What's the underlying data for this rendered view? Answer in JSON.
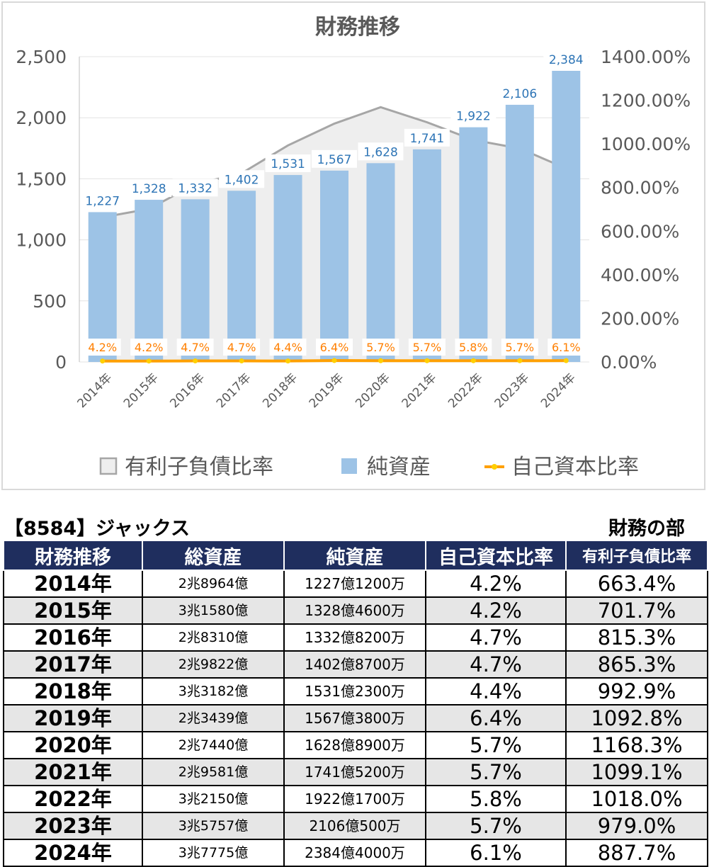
{
  "chart_data": {
    "type": "bar",
    "title": "財務推移",
    "categories": [
      "2014年",
      "2015年",
      "2016年",
      "2017年",
      "2018年",
      "2019年",
      "2020年",
      "2021年",
      "2022年",
      "2023年",
      "2024年"
    ],
    "series": [
      {
        "name": "有利子負債比率",
        "type": "area",
        "axis": "right",
        "values": [
          663.4,
          701.7,
          815.3,
          865.3,
          992.9,
          1092.8,
          1168.3,
          1099.1,
          1018.0,
          979.0,
          887.7
        ]
      },
      {
        "name": "純資産",
        "type": "bar",
        "axis": "left",
        "values": [
          1227,
          1328,
          1332,
          1402,
          1531,
          1567,
          1628,
          1741,
          1922,
          2106,
          2384
        ],
        "labels": [
          "1,227",
          "1,328",
          "1,332",
          "1,402",
          "1,531",
          "1,567",
          "1,628",
          "1,741",
          "1,922",
          "2,106",
          "2,384"
        ]
      },
      {
        "name": "自己資本比率",
        "type": "line",
        "axis": "right",
        "values": [
          4.2,
          4.2,
          4.7,
          4.7,
          4.4,
          6.4,
          5.7,
          5.7,
          5.8,
          5.7,
          6.1
        ],
        "labels": [
          "4.2%",
          "4.2%",
          "4.7%",
          "4.7%",
          "4.4%",
          "6.4%",
          "5.7%",
          "5.7%",
          "5.8%",
          "5.7%",
          "6.1%"
        ]
      }
    ],
    "y_left": {
      "lim": [
        0,
        2500
      ],
      "ticks": [
        0,
        500,
        1000,
        1500,
        2000,
        2500
      ],
      "tick_labels": [
        "0",
        "500",
        "1,000",
        "1,500",
        "2,000",
        "2,500"
      ]
    },
    "y_right": {
      "lim": [
        0,
        1400
      ],
      "ticks": [
        0,
        200,
        400,
        600,
        800,
        1000,
        1200,
        1400
      ],
      "tick_labels": [
        "0.00%",
        "200.00%",
        "400.00%",
        "600.00%",
        "800.00%",
        "1000.00%",
        "1200.00%",
        "1400.00%"
      ]
    },
    "grid": true,
    "legend": "bottom",
    "colors": {
      "area_fill": "#eeeeee",
      "area_line": "#a6a6a6",
      "bar": "#9dc3e6",
      "bar_label": "#2e75b6",
      "ratio_line": "#ffa000",
      "ratio_marker": "#ffd000",
      "ratio_label": "#ff7f00"
    }
  },
  "captions": {
    "left": "【8584】ジャックス",
    "right": "財務の部"
  },
  "table": {
    "headers": [
      "財務推移",
      "総資産",
      "純資産",
      "自己資本比率",
      "有利子負債比率"
    ],
    "rows": [
      {
        "year": "2014年",
        "total": "2兆8964億",
        "net": "1227億1200万",
        "ratio": "4.2%",
        "debt": "663.4%"
      },
      {
        "year": "2015年",
        "total": "3兆1580億",
        "net": "1328億4600万",
        "ratio": "4.2%",
        "debt": "701.7%"
      },
      {
        "year": "2016年",
        "total": "2兆8310億",
        "net": "1332億8200万",
        "ratio": "4.7%",
        "debt": "815.3%"
      },
      {
        "year": "2017年",
        "total": "2兆9822億",
        "net": "1402億8700万",
        "ratio": "4.7%",
        "debt": "865.3%"
      },
      {
        "year": "2018年",
        "total": "3兆3182億",
        "net": "1531億2300万",
        "ratio": "4.4%",
        "debt": "992.9%"
      },
      {
        "year": "2019年",
        "total": "2兆3439億",
        "net": "1567億3800万",
        "ratio": "6.4%",
        "debt": "1092.8%"
      },
      {
        "year": "2020年",
        "total": "2兆7440億",
        "net": "1628億8900万",
        "ratio": "5.7%",
        "debt": "1168.3%"
      },
      {
        "year": "2021年",
        "total": "2兆9581億",
        "net": "1741億5200万",
        "ratio": "5.7%",
        "debt": "1099.1%"
      },
      {
        "year": "2022年",
        "total": "3兆2150億",
        "net": "1922億1700万",
        "ratio": "5.8%",
        "debt": "1018.0%"
      },
      {
        "year": "2023年",
        "total": "3兆5757億",
        "net": "2106億500万",
        "ratio": "5.7%",
        "debt": "979.0%"
      },
      {
        "year": "2024年",
        "total": "3兆7775億",
        "net": "2384億4000万",
        "ratio": "6.1%",
        "debt": "887.7%"
      }
    ]
  }
}
